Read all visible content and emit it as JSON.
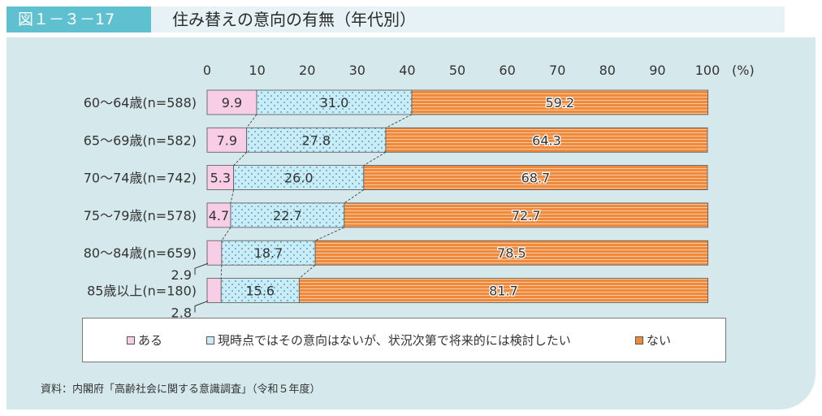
{
  "header": {
    "figure_no": "図１－３－17",
    "title": "住み替えの意向の有無（年代別）"
  },
  "colors": {
    "aru": "#f8cde6",
    "genji": "#c9ecf6",
    "nai": "#ef8a3c",
    "panel": "#d5e8ec",
    "tag": "#5fc1cf"
  },
  "chart_data": {
    "type": "bar",
    "orientation": "horizontal",
    "stacked": true,
    "unit": "(%)",
    "xlim": [
      0,
      100
    ],
    "x_ticks": [
      "0",
      "10",
      "20",
      "30",
      "40",
      "50",
      "60",
      "70",
      "80",
      "90",
      "100"
    ],
    "categories": [
      "60～64歳(n=588)",
      "65～69歳(n=582)",
      "70～74歳(n=742)",
      "75～79歳(n=578)",
      "80～84歳(n=659)",
      "85歳以上(n=180)"
    ],
    "series": [
      {
        "name": "ある",
        "values": [
          9.9,
          7.9,
          5.3,
          4.7,
          2.9,
          2.8
        ]
      },
      {
        "name": "現時点ではその意向はないが、状況次第で将来的には検討したい",
        "values": [
          31.0,
          27.8,
          26.0,
          22.7,
          18.7,
          15.6
        ]
      },
      {
        "name": "ない",
        "values": [
          59.2,
          64.3,
          68.7,
          72.7,
          78.5,
          81.7
        ]
      }
    ],
    "value_labels": [
      [
        "9.9",
        "31.0",
        "59.2"
      ],
      [
        "7.9",
        "27.8",
        "64.3"
      ],
      [
        "5.3",
        "26.0",
        "68.7"
      ],
      [
        "4.7",
        "22.7",
        "72.7"
      ],
      [
        "2.9",
        "18.7",
        "78.5"
      ],
      [
        "2.8",
        "15.6",
        "81.7"
      ]
    ],
    "legend_position": "bottom"
  },
  "source": "資料：内閣府「高齢社会に関する意識調査」（令和５年度）"
}
